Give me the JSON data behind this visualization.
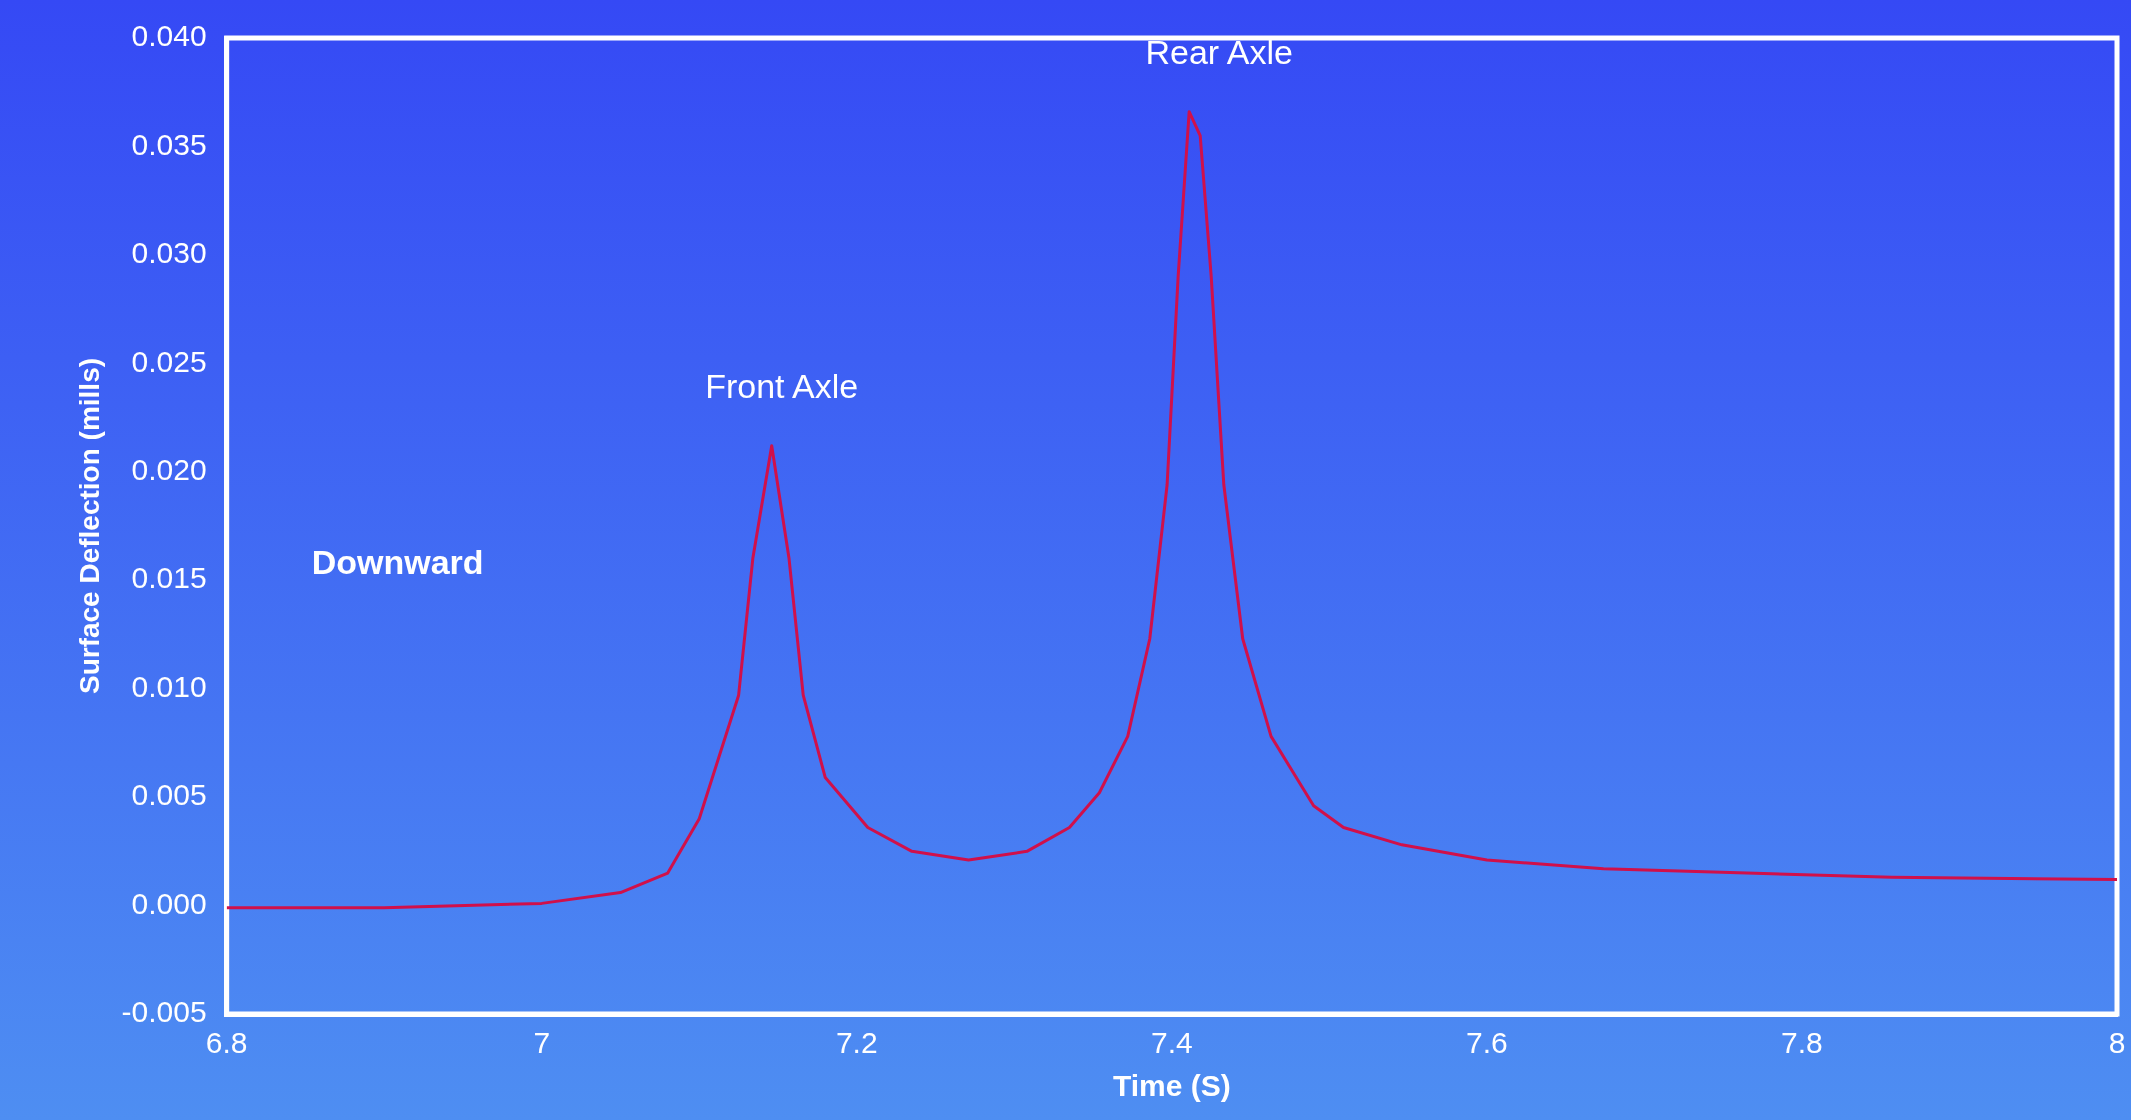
{
  "chart_data": {
    "type": "line",
    "xlabel": "Time (S)",
    "ylabel": "Surface Deflection (mills)",
    "x": [
      6.8,
      6.9,
      7.0,
      7.05,
      7.08,
      7.1,
      7.125,
      7.134,
      7.146,
      7.157,
      7.166,
      7.18,
      7.207,
      7.235,
      7.271,
      7.308,
      7.335,
      7.354,
      7.372,
      7.386,
      7.397,
      7.404,
      7.411,
      7.418,
      7.425,
      7.433,
      7.445,
      7.463,
      7.49,
      7.509,
      7.546,
      7.6,
      7.674,
      7.765,
      7.857,
      8.0
    ],
    "series": [
      {
        "color": "#d0104a",
        "values": [
          -0.0001,
          -0.0001,
          0.0001,
          0.0006,
          0.0015,
          0.004,
          0.0097,
          0.016,
          0.0212,
          0.016,
          0.0097,
          0.0059,
          0.0036,
          0.0025,
          0.0021,
          0.0025,
          0.0036,
          0.0052,
          0.0078,
          0.0123,
          0.0194,
          0.029,
          0.0366,
          0.0355,
          0.029,
          0.0194,
          0.0123,
          0.0078,
          0.0046,
          0.0036,
          0.0028,
          0.0021,
          0.0017,
          0.0015,
          0.0013,
          0.0012
        ]
      }
    ],
    "xlim": [
      6.8,
      8
    ],
    "xticks": [
      6.8,
      7,
      7.2,
      7.4,
      7.6,
      7.8,
      8
    ],
    "ylim": [
      -0.005,
      0.04
    ],
    "yticks": [
      {
        "value": -0.005,
        "label": "-0.005"
      },
      {
        "value": 0,
        "label": "0.000"
      },
      {
        "value": 0.005,
        "label": "0.005"
      },
      {
        "value": 0.01,
        "label": "0.010"
      },
      {
        "value": 0.015,
        "label": "0.015"
      },
      {
        "value": 0.02,
        "label": "0.020"
      },
      {
        "value": 0.025,
        "label": "0.025"
      },
      {
        "value": 0.03,
        "label": "0.030"
      },
      {
        "value": 0.035,
        "label": "0.035"
      },
      {
        "value": 0.04,
        "label": "0.040"
      }
    ],
    "annotations": [
      {
        "text": "Front Axle",
        "x": 7.146,
        "y": 0.0212
      },
      {
        "text": "Rear Axle",
        "x": 7.411,
        "y": 0.0366
      },
      "Downward"
    ],
    "grid": false,
    "legend": false,
    "marker": "none",
    "line_style": "solid"
  }
}
